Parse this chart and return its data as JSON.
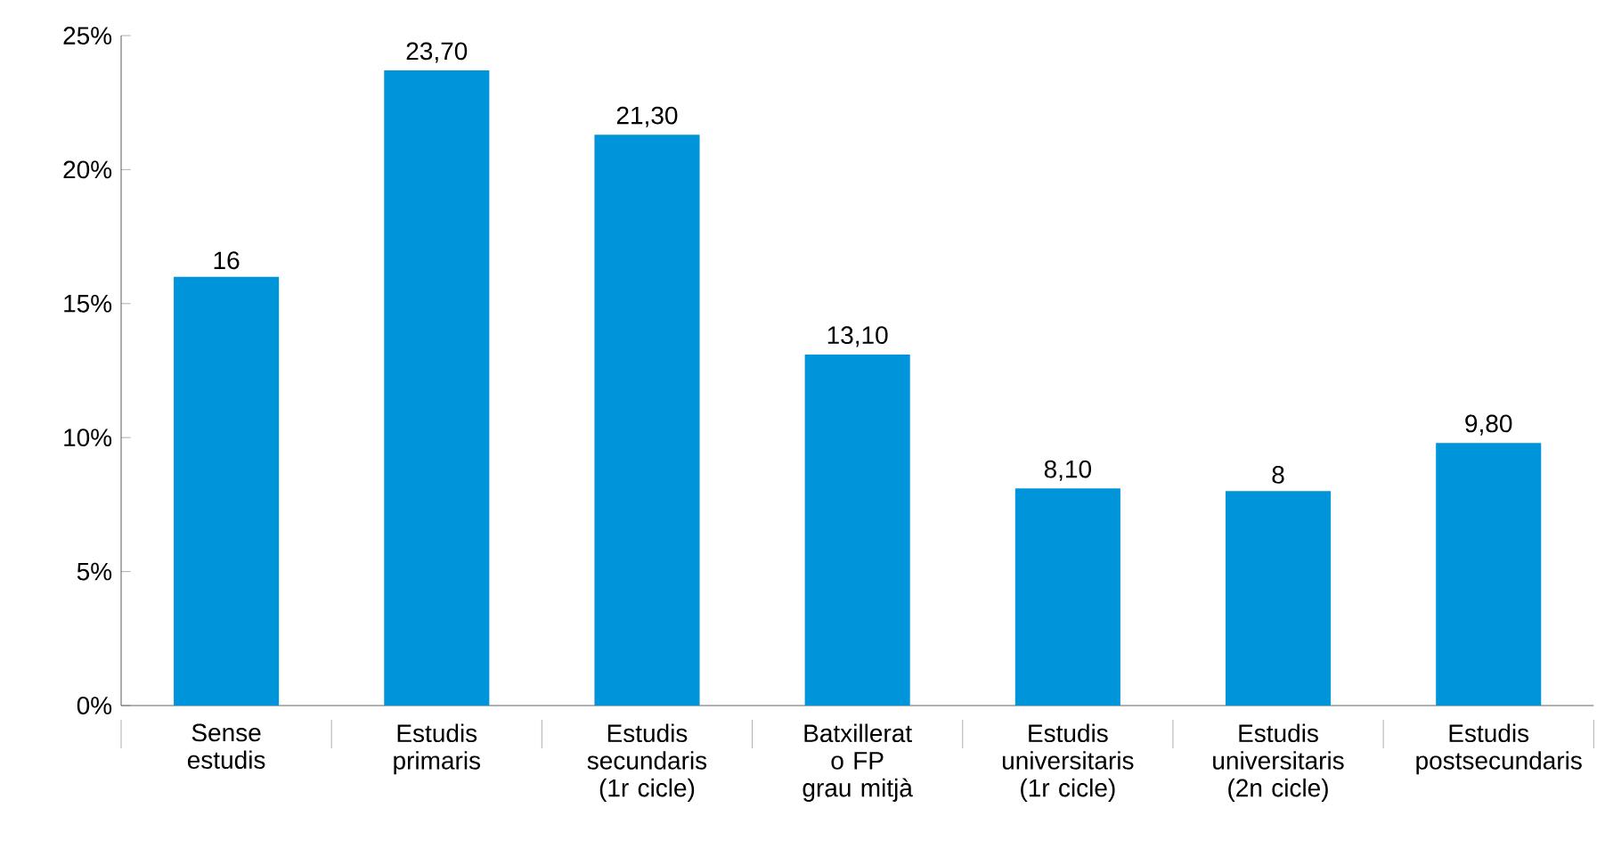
{
  "chart_data": {
    "type": "bar",
    "categories": [
      "Sense estudis",
      "Estudis primaris",
      "Estudis secundaris (1r cicle)",
      "Batxillerat o FP grau mitjà",
      "Estudis universitaris (1r cicle)",
      "Estudis universitaris (2n cicle)",
      "Estudis postsecundaris"
    ],
    "values": [
      16,
      23.7,
      21.3,
      13.1,
      8.1,
      8,
      9.8
    ],
    "value_labels": [
      "16",
      "23,70",
      "21,30",
      "13,10",
      "8,10",
      "8",
      "9,80"
    ],
    "color": "#0095da",
    "ylim": [
      0,
      25
    ],
    "yticks": [
      {
        "value": 0,
        "label": "0%"
      },
      {
        "value": 5,
        "label": "5%"
      },
      {
        "value": 10,
        "label": "10%"
      },
      {
        "value": 15,
        "label": "15%"
      },
      {
        "value": 20,
        "label": "20%"
      },
      {
        "value": 25,
        "label": "25%"
      }
    ],
    "grid": false
  }
}
